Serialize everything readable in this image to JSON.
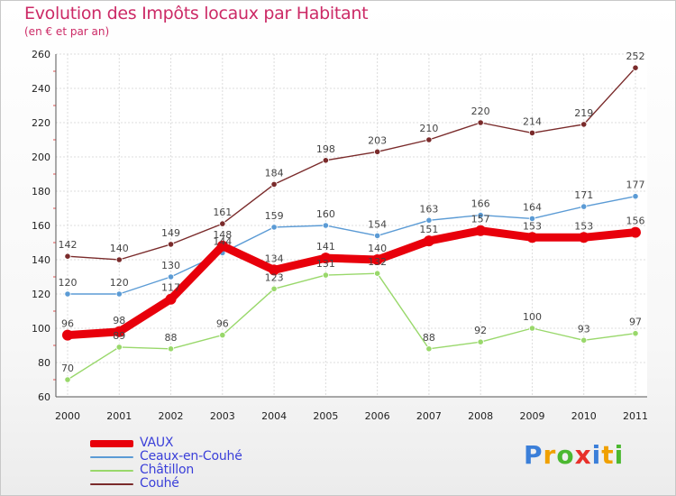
{
  "title": "Evolution des Impôts locaux par Habitant",
  "subtitle": "(en € et par an)",
  "logo": {
    "letters": [
      "P",
      "r",
      "o",
      "x",
      "i",
      "t",
      "i"
    ],
    "colors": [
      "#3b7fd9",
      "#f0a000",
      "#4bb830",
      "#e8302a",
      "#3b7fd9",
      "#f0a000",
      "#4bb830"
    ]
  },
  "chart_data": {
    "type": "line",
    "title": "Evolution des Impôts locaux par Habitant",
    "subtitle": "(en € et par an)",
    "xlabel": "",
    "ylabel": "",
    "ylim": [
      60,
      260
    ],
    "yticks": [
      60,
      80,
      100,
      120,
      140,
      160,
      180,
      200,
      220,
      240,
      260
    ],
    "categories": [
      "2000",
      "2001",
      "2002",
      "2003",
      "2004",
      "2005",
      "2006",
      "2007",
      "2008",
      "2009",
      "2010",
      "2011"
    ],
    "grid": true,
    "legend_position": "bottom-left",
    "series": [
      {
        "name": "VAUX",
        "color": "#e8000b",
        "width": "thick",
        "values": [
          96,
          98,
          117,
          148,
          134,
          141,
          140,
          151,
          157,
          153,
          153,
          156
        ],
        "labels": [
          "96",
          "98",
          "117",
          "148",
          "134",
          "141",
          "140",
          "151",
          "157",
          "153",
          "153",
          "156"
        ]
      },
      {
        "name": "Ceaux-en-Couhé",
        "color": "#5b9bd5",
        "width": "thin",
        "values": [
          120,
          120,
          130,
          144,
          159,
          160,
          154,
          163,
          166,
          164,
          171,
          177
        ],
        "labels": [
          "120",
          "120",
          "130",
          "144",
          "159",
          "160",
          "154",
          "163",
          "166",
          "164",
          "171",
          "177"
        ]
      },
      {
        "name": "Châtillon",
        "color": "#99d86b",
        "width": "thin",
        "values": [
          70,
          89,
          88,
          96,
          123,
          131,
          132,
          88,
          92,
          100,
          93,
          97
        ],
        "labels": [
          "70",
          "89",
          "88",
          "96",
          "123",
          "131",
          "132",
          "88",
          "92",
          "100",
          "93",
          "97"
        ]
      },
      {
        "name": "Couhé",
        "color": "#7a2b2b",
        "width": "thin",
        "values": [
          142,
          140,
          149,
          161,
          184,
          198,
          203,
          210,
          220,
          214,
          219,
          252
        ],
        "labels": [
          "142",
          "140",
          "149",
          "161",
          "184",
          "198",
          "203",
          "210",
          "220",
          "214",
          "219",
          "252"
        ]
      }
    ]
  }
}
